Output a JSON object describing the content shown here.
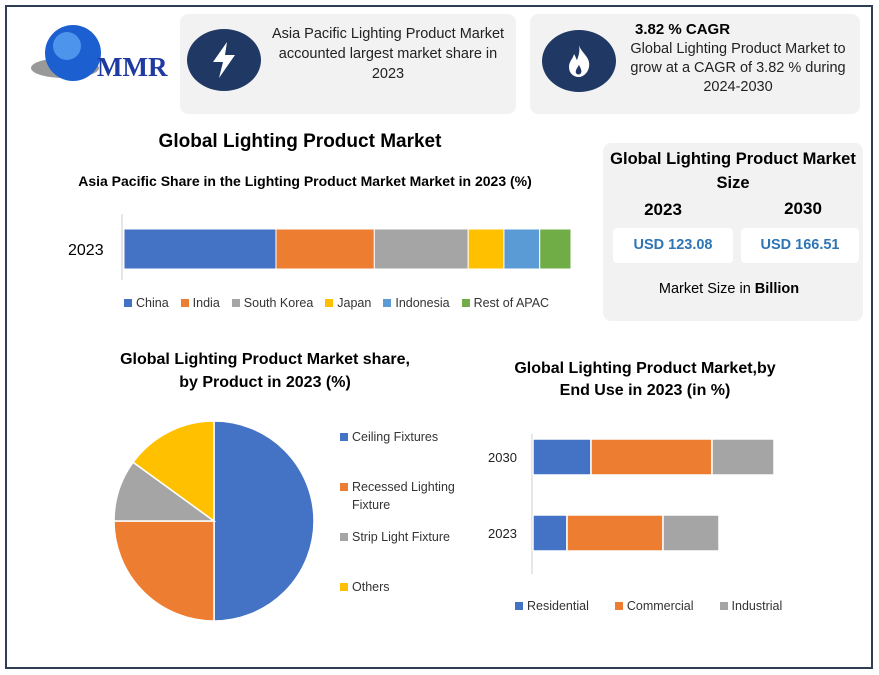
{
  "logo": {
    "text": "MMR"
  },
  "info_card_1": {
    "icon": "lightning-icon",
    "text": "Asia Pacific Lighting Product Market accounted largest market share in 2023"
  },
  "info_card_2": {
    "icon": "flame-icon",
    "title": "3.82 % CAGR",
    "text": "Global Lighting Product Market to grow at a CAGR of 3.82 % during 2024-2030"
  },
  "main_title": "Global Lighting Product Market",
  "market_size": {
    "title": "Global Lighting Product Market Size",
    "years": [
      "2023",
      "2030"
    ],
    "values": [
      "USD 123.08",
      "USD 166.51"
    ],
    "unit_prefix": "Market Size in ",
    "unit": "Billion"
  },
  "colors": {
    "blue": "#4472c4",
    "orange": "#ed7d31",
    "gray": "#a5a5a5",
    "yellow": "#ffc000",
    "lightblue": "#5b9bd5",
    "green": "#70ad47",
    "navy": "#1f3864"
  },
  "chart_data": [
    {
      "type": "bar",
      "orientation": "horizontal",
      "stacked": true,
      "title": "Asia Pacific Share in the Lighting Product Market Market in 2023 (%)",
      "categories": [
        "2023"
      ],
      "series": [
        {
          "name": "China",
          "values": [
            34
          ],
          "color": "#4472c4"
        },
        {
          "name": "India",
          "values": [
            22
          ],
          "color": "#ed7d31"
        },
        {
          "name": "South Korea",
          "values": [
            21
          ],
          "color": "#a5a5a5"
        },
        {
          "name": "Japan",
          "values": [
            8
          ],
          "color": "#ffc000"
        },
        {
          "name": "Indonesia",
          "values": [
            8
          ],
          "color": "#5b9bd5"
        },
        {
          "name": "Rest of APAC",
          "values": [
            7
          ],
          "color": "#70ad47"
        }
      ],
      "legend": "bottom"
    },
    {
      "type": "pie",
      "title": "Global Lighting Product Market share, by Product in 2023  (%)",
      "labels": [
        "Ceiling Fixtures",
        "Recessed Lighting Fixture",
        "Strip Light Fixture",
        "Others"
      ],
      "values": [
        50,
        25,
        10,
        15
      ],
      "colors": [
        "#4472c4",
        "#ed7d31",
        "#a5a5a5",
        "#ffc000"
      ],
      "legend": "right"
    },
    {
      "type": "bar",
      "orientation": "horizontal",
      "stacked": true,
      "title": "Global Lighting Product Market,by End Use in 2023 (in %)",
      "categories": [
        "2030",
        "2023"
      ],
      "series": [
        {
          "name": "Residential",
          "values": [
            58,
            34
          ],
          "color": "#4472c4"
        },
        {
          "name": "Commercial",
          "values": [
            121,
            96
          ],
          "color": "#ed7d31"
        },
        {
          "name": "Industrial",
          "values": [
            62,
            56
          ],
          "color": "#a5a5a5"
        }
      ],
      "legend": "bottom"
    }
  ]
}
